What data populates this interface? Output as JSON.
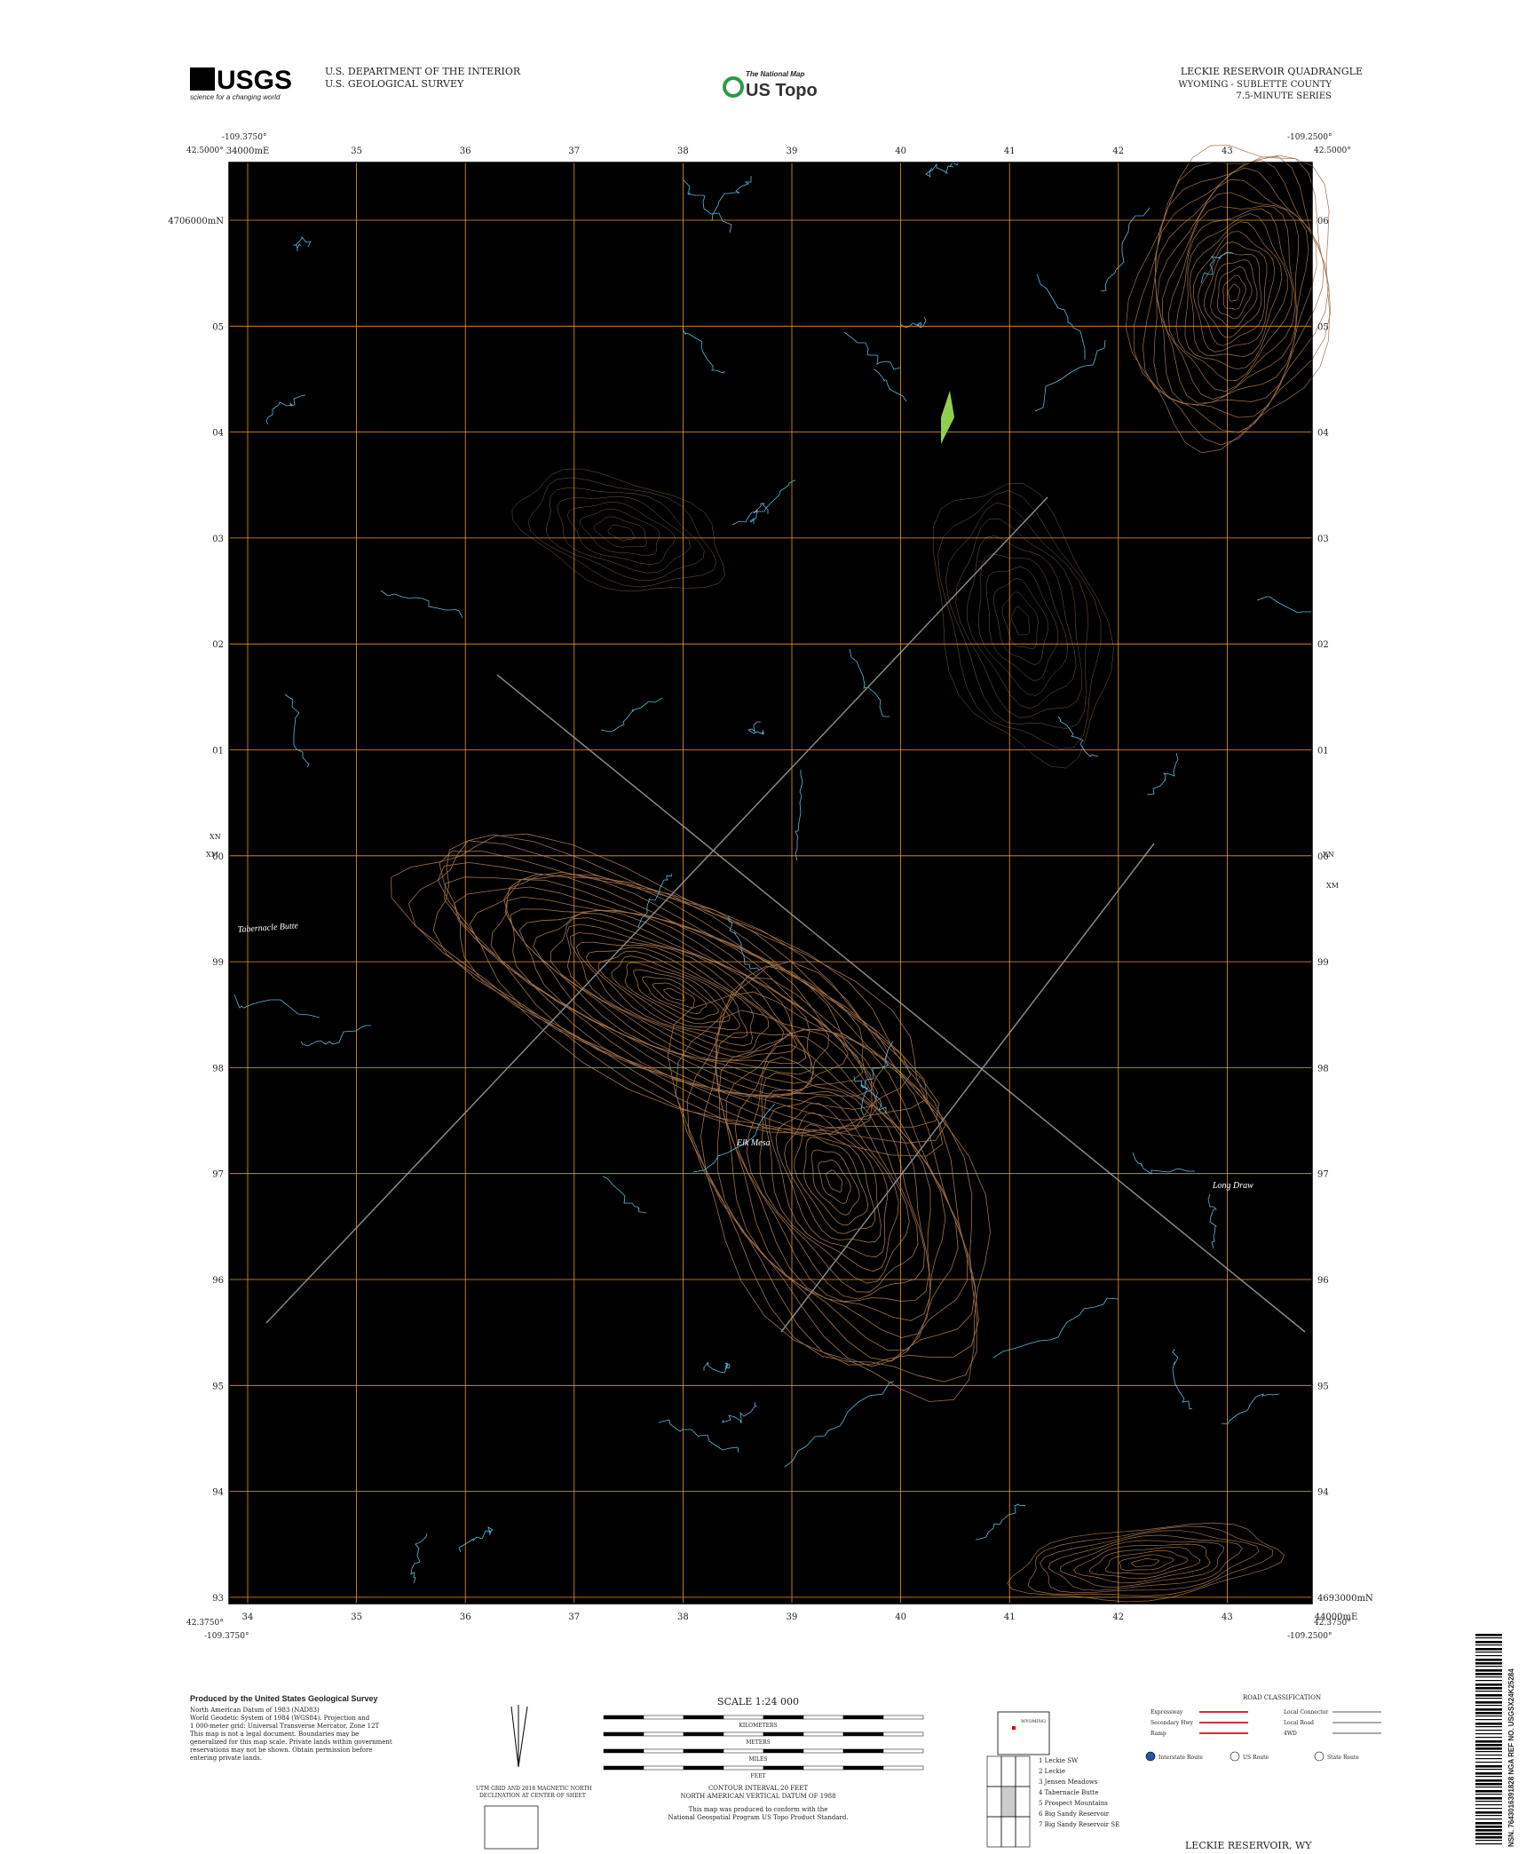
{
  "header": {
    "logo": "USGS",
    "tagline": "science for a changing world",
    "agency": [
      "U.S. DEPARTMENT OF THE INTERIOR",
      "U.S. GEOLOGICAL SURVEY"
    ],
    "national_map": "The National Map",
    "us_topo": "US Topo",
    "title": "LECKIE RESERVOIR QUADRANGLE",
    "state_county": "WYOMING - SUBLETTE COUNTY",
    "series": "7.5-MINUTE SERIES"
  },
  "map": {
    "corners": {
      "nw_lon": "-109.3750°",
      "nw_lat": "42.5000°",
      "ne_lon": "-109.2500°",
      "ne_lat": "42.5000°",
      "sw_lat": "42.3750°",
      "sw_lon": "-109.3750°",
      "se_lon": "-109.2500°",
      "se_lat": "42.3750°"
    },
    "top_eastings": [
      "34000mE",
      "35",
      "36",
      "37",
      "38",
      "39",
      "40",
      "41",
      "42",
      "43"
    ],
    "bottom_eastings": [
      "34",
      "35",
      "36",
      "37",
      "38",
      "39",
      "40",
      "41",
      "42",
      "43",
      "44000mE"
    ],
    "left_northings": [
      "4706000mN",
      "05",
      "04",
      "03",
      "02",
      "01",
      "00",
      "99",
      "98",
      "97",
      "96",
      "95",
      "94",
      "93"
    ],
    "right_northings": [
      "06",
      "05",
      "04",
      "03",
      "02",
      "01",
      "00",
      "99",
      "98",
      "97",
      "96",
      "95",
      "94",
      "4693000mN"
    ],
    "declination_marks": [
      "XN",
      "XM"
    ],
    "place_names": [
      "Tabernacle Butte",
      "Elk Mesa",
      "Long Draw"
    ]
  },
  "footer": {
    "produced_by": "Produced by the United States Geological Survey",
    "credits": [
      "North American Datum of 1983 (NAD83)",
      "World Geodetic System of 1984 (WGS84). Projection and",
      "1 000-meter grid: Universal Transverse Mercator, Zone 12T",
      "This map is not a legal document. Boundaries may be",
      "generalized for this map scale. Private lands within government",
      "reservations may not be shown. Obtain permission before",
      "entering private lands."
    ],
    "scale": "SCALE 1:24 000",
    "units": [
      "KILOMETERS",
      "METERS",
      "MILES",
      "FEET"
    ],
    "contour": [
      "CONTOUR INTERVAL 20 FEET",
      "NORTH AMERICAN VERTICAL DATUM OF 1988"
    ],
    "standard": [
      "This map was produced to conform with the",
      "National Geospatial Program US Topo Product Standard."
    ],
    "declination_note": [
      "UTM GRID AND 2018 MAGNETIC NORTH",
      "DECLINATION AT CENTER OF SHEET"
    ],
    "road_title": "ROAD CLASSIFICATION",
    "roads": [
      "Expressway",
      "Secondary Hwy",
      "Ramp",
      "Local Connector",
      "Local Road",
      "4WD"
    ],
    "route_shields": [
      "Interstate Route",
      "US Route",
      "State Route"
    ],
    "state": "WYOMING",
    "adjoining": [
      "1 Leckie SW",
      "2 Leckie",
      "3 Jensen Meadows",
      "4 Tabernacle Butte",
      "5 Prospect Mountains",
      "6 Big Sandy Reservoir",
      "7 Big Sandy Reservoir SE"
    ],
    "quad_name": "LECKIE RESERVOIR, WY",
    "barcode": "NSN. 7643016391828 NGA REF NO. USGSX24K25284"
  }
}
